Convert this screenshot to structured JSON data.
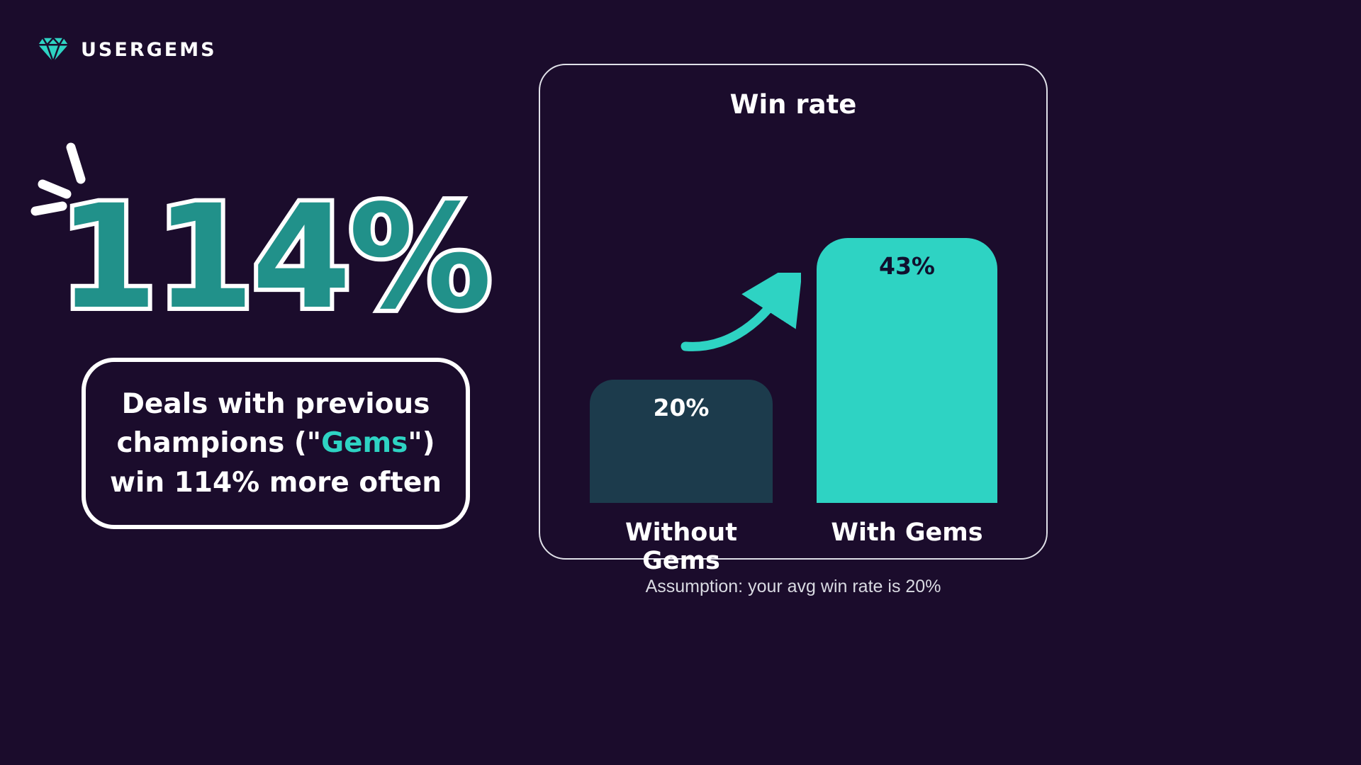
{
  "colors": {
    "background": "#1b0c2c",
    "teal_bright": "#2ed3c3",
    "teal_stat_fill": "#21918a",
    "bar_dark": "#1c3b4c",
    "text_white": "#ffffff",
    "value_dark_text": "#10102e",
    "card_border": "#dfe0e8"
  },
  "logo": {
    "brand": "USERGEMS",
    "icon": "gem-icon"
  },
  "headline": {
    "stat": "114%"
  },
  "callout": {
    "line1": "Deals with previous",
    "line2_prefix": "champions (\"",
    "line2_highlight": "Gems",
    "line2_suffix": "\")",
    "line3": "win 114% more often"
  },
  "chart_data": {
    "type": "bar",
    "title": "Win rate",
    "categories": [
      "Without Gems",
      "With Gems"
    ],
    "values": [
      20,
      43
    ],
    "value_labels": [
      "20%",
      "43%"
    ],
    "unit": "%",
    "ylim": [
      0,
      50
    ],
    "grid": false,
    "legend": "none",
    "bar_colors": [
      "#1c3b4c",
      "#2ed3c3"
    ],
    "annotations": [
      "upward curved growth arrow between bars"
    ]
  },
  "footnote": "Assumption: your avg win rate is 20%"
}
